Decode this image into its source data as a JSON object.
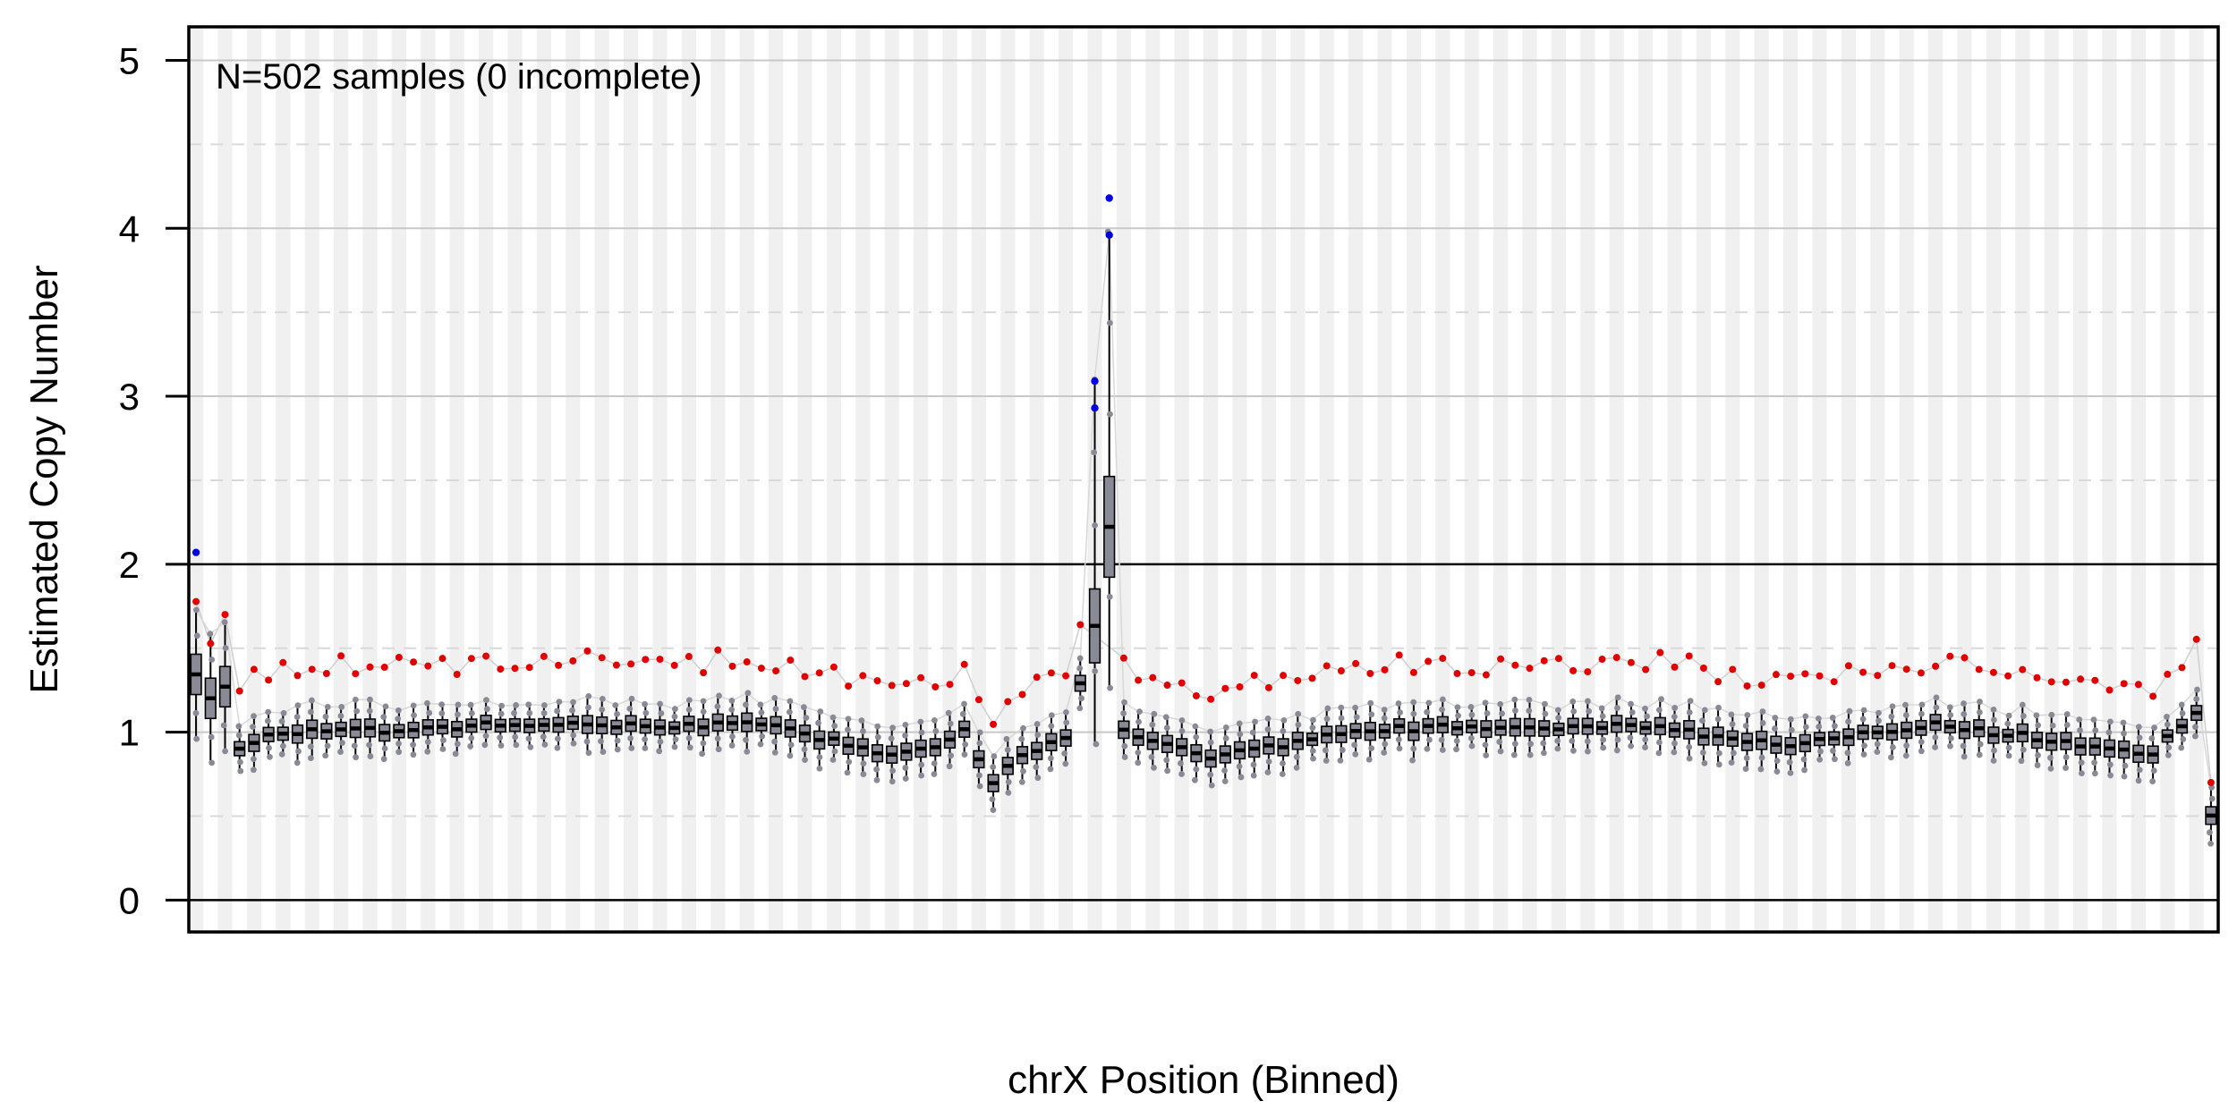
{
  "chart_data": {
    "type": "boxplot",
    "annotation": "N=502 samples (0 incomplete)",
    "xlabel": "chrX Position (Binned)",
    "ylabel": "Estimated Copy Number",
    "ylim": [
      -0.19,
      5.2
    ],
    "yticks": [
      0,
      1,
      2,
      3,
      4,
      5
    ],
    "solid_reference_lines": [
      0,
      2
    ],
    "gridlines_major": [
      1,
      3,
      4,
      5
    ],
    "gridlines_minor_dashed": [
      0.5,
      1.5,
      2.5,
      3.5,
      4.5
    ],
    "n_bins": 140,
    "bin_shading": "alternating light gray vertical stripes",
    "colors": {
      "box_fill": "#8a8a96",
      "median": "#000000",
      "points": "#8a8a96",
      "upper_outliers": "#e00000",
      "extreme_outliers": "#0000e0",
      "stripe": "#f0f0f0"
    },
    "median_profile": [
      {
        "bin": 0,
        "median": 1.36
      },
      {
        "bin": 1,
        "median": 1.22
      },
      {
        "bin": 2,
        "median": 1.26
      },
      {
        "bin": 3,
        "median": 0.89
      },
      {
        "bin": 5,
        "median": 1.0
      },
      {
        "bin": 10,
        "median": 1.0
      },
      {
        "bin": 20,
        "median": 1.04
      },
      {
        "bin": 30,
        "median": 1.04
      },
      {
        "bin": 40,
        "median": 1.05
      },
      {
        "bin": 45,
        "median": 0.92
      },
      {
        "bin": 48,
        "median": 0.85
      },
      {
        "bin": 51,
        "median": 0.93
      },
      {
        "bin": 53,
        "median": 1.0
      },
      {
        "bin": 55,
        "median": 0.71
      },
      {
        "bin": 57,
        "median": 0.87
      },
      {
        "bin": 60,
        "median": 0.95
      },
      {
        "bin": 62,
        "median": 1.63
      },
      {
        "bin": 63,
        "median": 2.23
      },
      {
        "bin": 64,
        "median": 1.0
      },
      {
        "bin": 70,
        "median": 0.84
      },
      {
        "bin": 80,
        "median": 1.02
      },
      {
        "bin": 100,
        "median": 1.04
      },
      {
        "bin": 110,
        "median": 0.92
      },
      {
        "bin": 120,
        "median": 1.04
      },
      {
        "bin": 135,
        "median": 0.88
      },
      {
        "bin": 138,
        "median": 1.12
      },
      {
        "bin": 139,
        "median": 0.5
      }
    ],
    "max_point": {
      "bin": 63,
      "value": 4.18
    }
  }
}
